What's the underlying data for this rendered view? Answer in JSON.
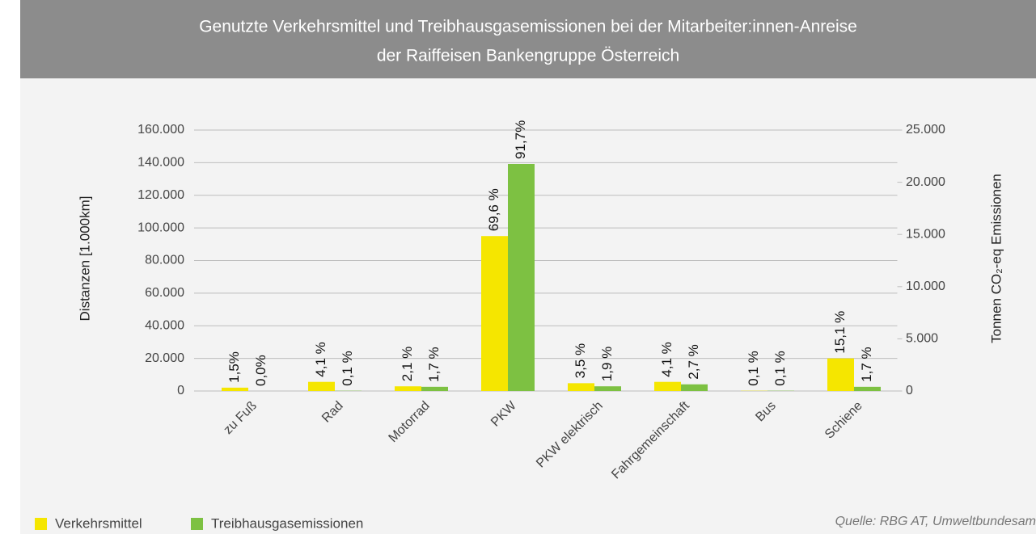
{
  "chart_data": {
    "type": "bar",
    "title": [
      "Genutzte Verkehrsmittel und Treibhausgasemissionen bei der Mitarbeiter:innen-Anreise",
      "der Raiffeisen Bankengruppe Österreich"
    ],
    "ylabel": "Distanzen [1.000km]",
    "y2label": "Tonnen CO₂-eq Emissionen",
    "source": "Quelle: RBG AT, Umweltbundesam",
    "categories": [
      "zu Fuß",
      "Rad",
      "Motorrad",
      "PKW",
      "PKW elektrisch",
      "Fahrgemeinschaft",
      "Bus",
      "Schiene"
    ],
    "series": [
      {
        "name": "Verkehrsmittel",
        "color": "#f5e600",
        "axis": "y",
        "values": [
          2050,
          5600,
          2870,
          95000,
          4780,
          5600,
          140,
          20000
        ],
        "labels": [
          "1,5%",
          "4,1 %",
          "2,1 %",
          "69,6 %",
          "3,5 %",
          "4,1 %",
          "0,1 %",
          "15,1 %"
        ]
      },
      {
        "name": "Treibhausgasemissionen",
        "color": "#7dc142",
        "axis": "y2",
        "values": [
          0,
          24,
          400,
          21750,
          450,
          640,
          24,
          400
        ],
        "labels": [
          "0,0%",
          "0,1 %",
          "1,7 %",
          "91,7%",
          "1,9 %",
          "2,7 %",
          "0,1 %",
          "1,7 %"
        ]
      }
    ],
    "ylim": [
      0,
      160000
    ],
    "yticks": [
      0,
      {
        "value": 20000,
        "label": "20.000"
      },
      {
        "value": 40000,
        "label": "40.000"
      },
      {
        "value": 60000,
        "label": "60.000"
      },
      {
        "value": 80000,
        "label": "80.000"
      },
      {
        "value": 100000,
        "label": "100.000"
      },
      {
        "value": 120000,
        "label": "120.000"
      },
      {
        "value": 140000,
        "label": "140.000"
      },
      {
        "value": 160000,
        "label": "160.000"
      }
    ],
    "y2lim": [
      0,
      25000
    ],
    "y2ticks": [
      0,
      {
        "value": 5000,
        "label": "5.000"
      },
      {
        "value": 10000,
        "label": "10.000"
      },
      {
        "value": 15000,
        "label": "15.000"
      },
      {
        "value": 20000,
        "label": "20.000"
      },
      {
        "value": 25000,
        "label": "25.000"
      }
    ],
    "grid": true
  }
}
